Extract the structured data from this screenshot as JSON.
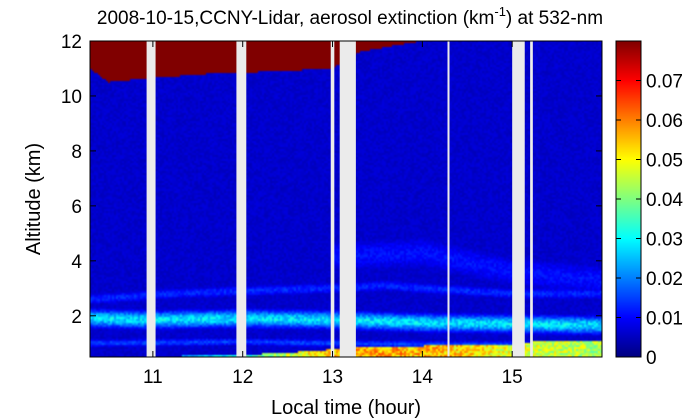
{
  "chart_data": {
    "type": "heatmap",
    "title": {
      "main": "2008-10-15,CCNY-Lidar, aerosol extinction (km",
      "superscript": "-1",
      "tail": ") at 532-nm"
    },
    "xlabel": "Local time (hour)",
    "ylabel": "Altitude (km)",
    "xlim": [
      10.3,
      16.0
    ],
    "ylim": [
      0.5,
      12
    ],
    "x_ticks": [
      {
        "value": 11,
        "label": "11"
      },
      {
        "value": 12,
        "label": "12"
      },
      {
        "value": 13,
        "label": "13"
      },
      {
        "value": 14,
        "label": "14"
      },
      {
        "value": 15,
        "label": "15"
      }
    ],
    "y_ticks": [
      {
        "value": 2,
        "label": "2"
      },
      {
        "value": 4,
        "label": "4"
      },
      {
        "value": 6,
        "label": "6"
      },
      {
        "value": 8,
        "label": "8"
      },
      {
        "value": 10,
        "label": "10"
      },
      {
        "value": 12,
        "label": "12"
      }
    ],
    "colorbar": {
      "colormap": "jet",
      "range": [
        0,
        0.08
      ],
      "ticks": [
        {
          "value": 0,
          "label": "0"
        },
        {
          "value": 0.01,
          "label": "0.01"
        },
        {
          "value": 0.02,
          "label": "0.02"
        },
        {
          "value": 0.03,
          "label": "0.03"
        },
        {
          "value": 0.04,
          "label": "0.04"
        },
        {
          "value": 0.05,
          "label": "0.05"
        },
        {
          "value": 0.06,
          "label": "0.06"
        },
        {
          "value": 0.07,
          "label": "0.07"
        }
      ]
    },
    "data_gaps_hours": [
      [
        10.93,
        11.03
      ],
      [
        11.93,
        12.04
      ],
      [
        12.98,
        13.02
      ],
      [
        13.08,
        13.26
      ],
      [
        14.28,
        14.3
      ],
      [
        15.0,
        15.14
      ],
      [
        15.2,
        15.23
      ]
    ],
    "layers": [
      {
        "kind": "background",
        "value": 0.006
      },
      {
        "kind": "cloud",
        "value": 0.08,
        "top_km": 12,
        "base_km": [
          [
            10.3,
            11.0
          ],
          [
            10.5,
            10.5
          ],
          [
            10.8,
            10.6
          ],
          [
            11.6,
            10.8
          ],
          [
            12.4,
            10.9
          ],
          [
            13.0,
            11.0
          ],
          [
            13.3,
            11.6
          ],
          [
            13.8,
            11.9
          ],
          [
            14.0,
            12.0
          ]
        ]
      },
      {
        "kind": "band",
        "value": 0.028,
        "center_km": [
          [
            10.3,
            1.9
          ],
          [
            11.0,
            1.85
          ],
          [
            12.0,
            1.9
          ],
          [
            13.0,
            1.85
          ],
          [
            14.0,
            1.75
          ],
          [
            15.0,
            1.7
          ],
          [
            16.0,
            1.65
          ]
        ],
        "half_width_km": 0.32
      },
      {
        "kind": "band",
        "value": 0.015,
        "center_km": [
          [
            10.3,
            1.0
          ],
          [
            12.0,
            1.05
          ],
          [
            13.0,
            1.0
          ],
          [
            14.0,
            0.95
          ],
          [
            16.0,
            0.95
          ]
        ],
        "half_width_km": 0.15
      },
      {
        "kind": "band",
        "value": 0.013,
        "center_km": [
          [
            10.3,
            2.6
          ],
          [
            11.2,
            2.8
          ],
          [
            12.0,
            2.9
          ],
          [
            13.0,
            3.0
          ],
          [
            13.6,
            3.1
          ],
          [
            14.0,
            3.0
          ],
          [
            15.0,
            2.8
          ],
          [
            16.0,
            2.8
          ]
        ],
        "half_width_km": 0.22
      },
      {
        "kind": "band",
        "value": 0.011,
        "center_km": [
          [
            13.3,
            4.2
          ],
          [
            14.0,
            4.3
          ],
          [
            15.0,
            3.6
          ],
          [
            16.0,
            3.3
          ]
        ],
        "half_width_km": 0.7
      },
      {
        "kind": "surface",
        "value": 0.048,
        "top_km": [
          [
            10.3,
            0.5
          ],
          [
            11.7,
            0.55
          ],
          [
            12.3,
            0.62
          ],
          [
            12.8,
            0.72
          ],
          [
            13.3,
            0.85
          ],
          [
            14.0,
            0.9
          ],
          [
            15.0,
            0.92
          ],
          [
            15.3,
            1.1
          ],
          [
            16.0,
            1.05
          ]
        ],
        "peak_value": [
          [
            10.3,
            0.012
          ],
          [
            11.8,
            0.03
          ],
          [
            12.6,
            0.05
          ],
          [
            13.2,
            0.06
          ],
          [
            14.2,
            0.058
          ],
          [
            15.0,
            0.05
          ],
          [
            16.0,
            0.045
          ]
        ]
      }
    ]
  }
}
